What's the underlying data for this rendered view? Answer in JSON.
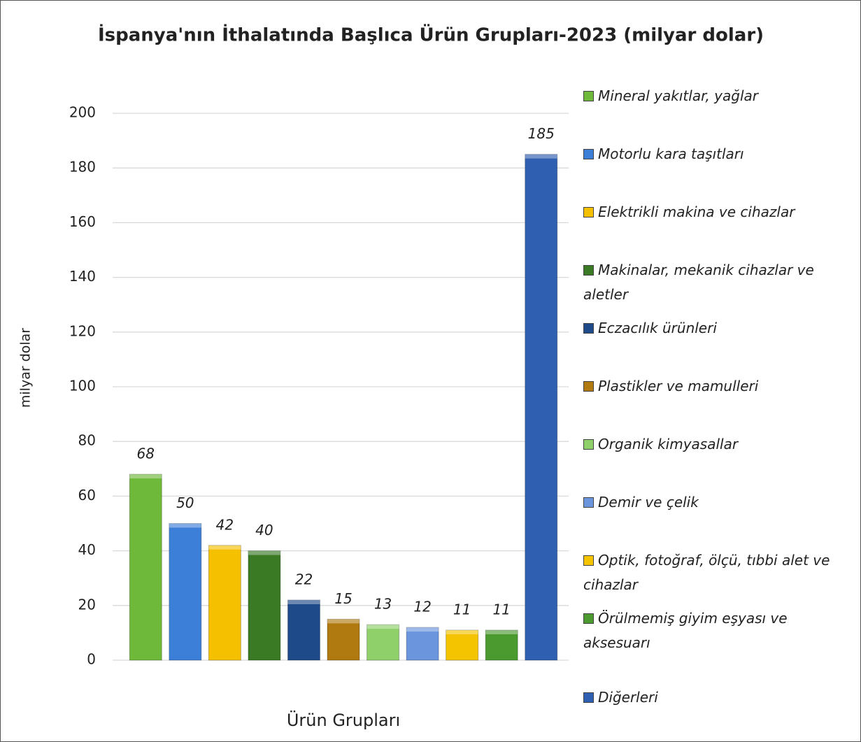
{
  "chart_data": {
    "type": "bar",
    "title": "İspanya'nın İthalatında Başlıca Ürün Grupları-2023 (milyar dolar)",
    "x_label": "Ürün Grupları",
    "y_label": "milyar dolar",
    "categories": [
      "Mineral yakıtlar, yağlar",
      "Motorlu kara taşıtları",
      "Elektrikli makina ve cihazlar",
      "Makinalar, mekanik cihazlar ve aletler",
      "Eczacılık ürünleri",
      "Plastikler ve mamulleri",
      "Organik kimyasallar",
      "Demir ve çelik",
      "Optik, fotoğraf, ölçü, tıbbi alet ve cihazlar",
      "Örülmemiş giyim eşyası ve aksesuarı",
      "Diğerleri"
    ],
    "values": [
      68,
      50,
      42,
      40,
      22,
      15,
      13,
      12,
      11,
      11,
      185
    ],
    "colors": [
      "#6fb93a",
      "#3c7fd8",
      "#f5c000",
      "#3a7a25",
      "#1f4a8a",
      "#b07a10",
      "#8fd06a",
      "#6b96dd",
      "#f5c400",
      "#4a9a30",
      "#2e5fb0"
    ],
    "ylim": [
      0,
      200
    ],
    "yticks": [
      0,
      20,
      40,
      60,
      80,
      100,
      120,
      140,
      160,
      180,
      200
    ],
    "grid": true,
    "legend": "right"
  }
}
